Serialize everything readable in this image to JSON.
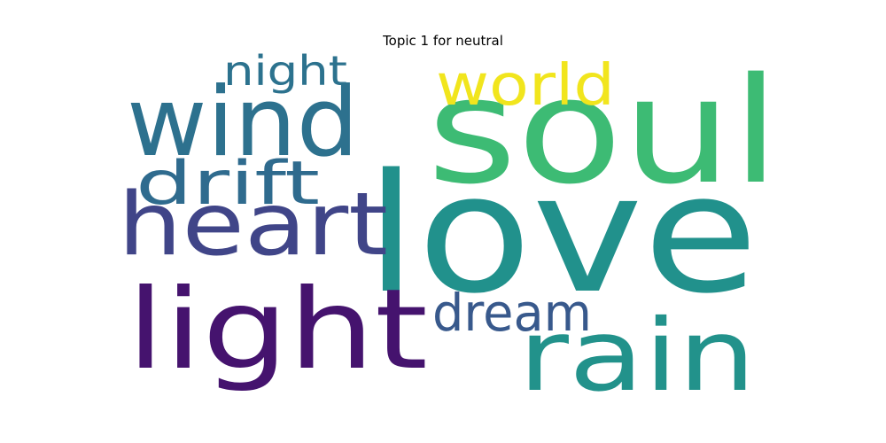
{
  "chart_data": {
    "type": "wordcloud",
    "title": "Topic 1 for neutral",
    "words": [
      {
        "text": "love",
        "color": "#21918c"
      },
      {
        "text": "soul",
        "color": "#3dbb74"
      },
      {
        "text": "rain",
        "color": "#22928b"
      },
      {
        "text": "light",
        "color": "#45136e"
      },
      {
        "text": "heart",
        "color": "#404588"
      },
      {
        "text": "wind",
        "color": "#2d718e"
      },
      {
        "text": "drift",
        "color": "#2f6b8e"
      },
      {
        "text": "dream",
        "color": "#38598c"
      },
      {
        "text": "world",
        "color": "#f1e51d"
      },
      {
        "text": "night",
        "color": "#2c728e"
      }
    ]
  }
}
